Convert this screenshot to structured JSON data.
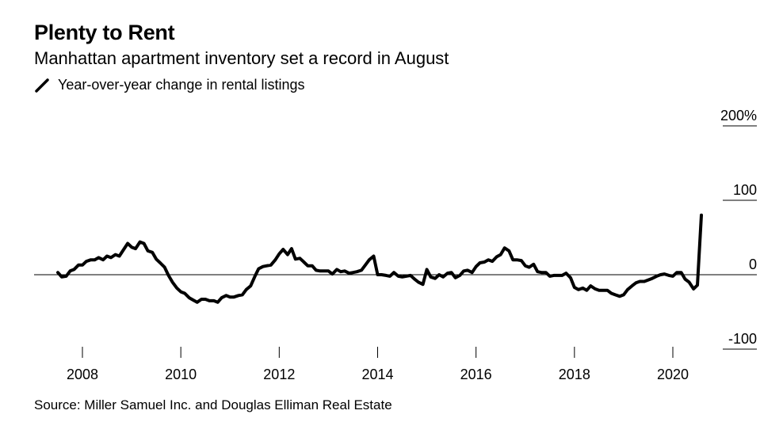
{
  "title": "Plenty to Rent",
  "subtitle": "Manhattan apartment inventory set a record in August",
  "legend": {
    "label": "Year-over-year change in rental listings",
    "color": "#000000"
  },
  "source": "Source: Miller Samuel Inc. and Douglas Elliman Real Estate",
  "chart_data": {
    "type": "line",
    "title": "Plenty to Rent",
    "subtitle": "Manhattan apartment inventory set a record in August",
    "ylim": [
      -100,
      200
    ],
    "xlim": [
      2006.9,
      2021.75
    ],
    "y_ticks": [
      200,
      100,
      0,
      -100
    ],
    "y_tick_labels": [
      "200%",
      "100",
      "0",
      "-100"
    ],
    "x_ticks": [
      2008,
      2010,
      2012,
      2014,
      2016,
      2018,
      2020
    ],
    "x_tick_labels": [
      "2008",
      "2010",
      "2012",
      "2014",
      "2016",
      "2018",
      "2020"
    ],
    "grid": false,
    "legend_position": "top-left",
    "series": [
      {
        "name": "Year-over-year change in rental listings",
        "color": "#000000",
        "x": [
          2007.5,
          2007.58,
          2007.67,
          2007.75,
          2007.83,
          2007.92,
          2008.0,
          2008.08,
          2008.17,
          2008.25,
          2008.33,
          2008.42,
          2008.5,
          2008.58,
          2008.67,
          2008.75,
          2008.83,
          2008.92,
          2009.0,
          2009.08,
          2009.17,
          2009.25,
          2009.33,
          2009.42,
          2009.5,
          2009.58,
          2009.67,
          2009.75,
          2009.83,
          2009.92,
          2010.0,
          2010.08,
          2010.17,
          2010.25,
          2010.33,
          2010.42,
          2010.5,
          2010.58,
          2010.67,
          2010.75,
          2010.83,
          2010.92,
          2011.0,
          2011.08,
          2011.17,
          2011.25,
          2011.33,
          2011.42,
          2011.5,
          2011.58,
          2011.67,
          2011.75,
          2011.83,
          2011.92,
          2012.0,
          2012.08,
          2012.17,
          2012.25,
          2012.33,
          2012.42,
          2012.5,
          2012.58,
          2012.67,
          2012.75,
          2012.83,
          2012.92,
          2013.0,
          2013.08,
          2013.17,
          2013.25,
          2013.33,
          2013.42,
          2013.5,
          2013.58,
          2013.67,
          2013.75,
          2013.83,
          2013.92,
          2014.0,
          2014.08,
          2014.17,
          2014.25,
          2014.33,
          2014.42,
          2014.5,
          2014.58,
          2014.67,
          2014.75,
          2014.83,
          2014.92,
          2015.0,
          2015.08,
          2015.17,
          2015.25,
          2015.33,
          2015.42,
          2015.5,
          2015.58,
          2015.67,
          2015.75,
          2015.83,
          2015.92,
          2016.0,
          2016.08,
          2016.17,
          2016.25,
          2016.33,
          2016.42,
          2016.5,
          2016.58,
          2016.67,
          2016.75,
          2016.83,
          2016.92,
          2017.0,
          2017.08,
          2017.17,
          2017.25,
          2017.33,
          2017.42,
          2017.5,
          2017.58,
          2017.67,
          2017.75,
          2017.83,
          2017.92,
          2018.0,
          2018.08,
          2018.17,
          2018.25,
          2018.33,
          2018.42,
          2018.5,
          2018.58,
          2018.67,
          2018.75,
          2018.83,
          2018.92,
          2019.0,
          2019.08,
          2019.17,
          2019.25,
          2019.33,
          2019.42,
          2019.5,
          2019.58,
          2019.67,
          2019.75,
          2019.83,
          2019.92,
          2020.0,
          2020.08,
          2020.17,
          2020.25,
          2020.33,
          2020.42,
          2020.5,
          2020.58
        ],
        "y": [
          3,
          -3,
          -2,
          5,
          7,
          13,
          13,
          18,
          20,
          20,
          23,
          20,
          25,
          23,
          27,
          25,
          33,
          42,
          37,
          35,
          44,
          42,
          32,
          30,
          21,
          16,
          10,
          -1,
          -10,
          -18,
          -23,
          -25,
          -31,
          -34,
          -37,
          -33,
          -33,
          -35,
          -35,
          -37,
          -31,
          -28,
          -30,
          -30,
          -28,
          -27,
          -20,
          -15,
          -3,
          8,
          11,
          12,
          13,
          20,
          28,
          34,
          27,
          35,
          21,
          22,
          17,
          12,
          12,
          6,
          5,
          5,
          5,
          1,
          7,
          4,
          5,
          2,
          3,
          4,
          6,
          13,
          20,
          25,
          0,
          0,
          -1,
          -2,
          3,
          -2,
          -3,
          -2,
          -1,
          -6,
          -10,
          -13,
          7,
          -3,
          -5,
          0,
          -3,
          2,
          3,
          -4,
          -1,
          5,
          6,
          3,
          11,
          16,
          17,
          20,
          18,
          24,
          27,
          36,
          32,
          20,
          20,
          19,
          12,
          10,
          14,
          4,
          3,
          3,
          -2,
          -1,
          -1,
          -1,
          2,
          -4,
          -17,
          -20,
          -18,
          -21,
          -15,
          -19,
          -21,
          -21,
          -21,
          -25,
          -27,
          -29,
          -27,
          -20,
          -15,
          -11,
          -9,
          -9,
          -7,
          -5,
          -2,
          0,
          1,
          -1,
          -2,
          3,
          3,
          -6,
          -10,
          -19,
          -14,
          80
        ]
      }
    ]
  }
}
